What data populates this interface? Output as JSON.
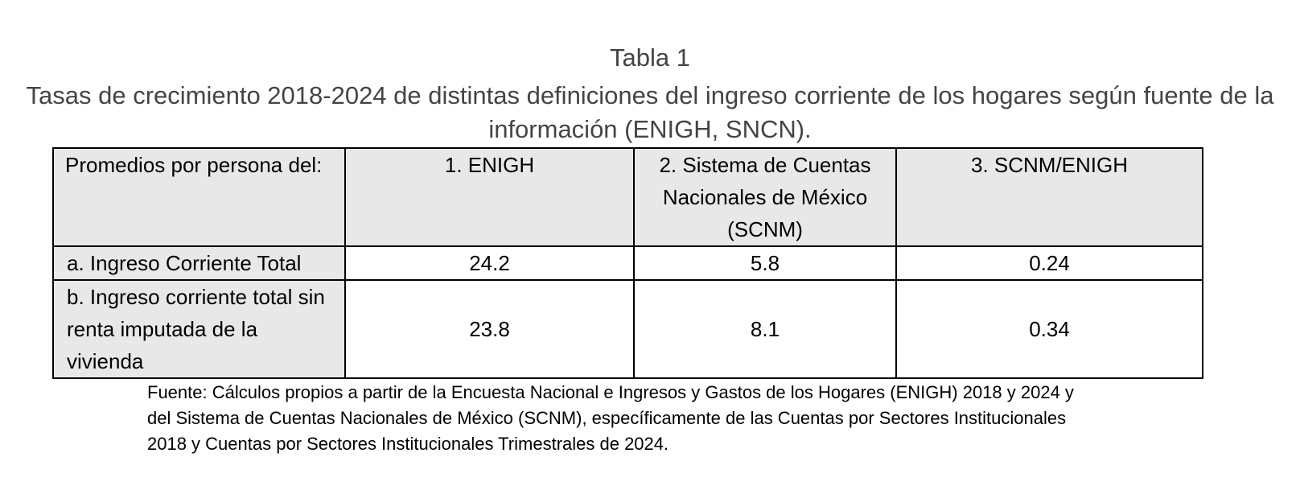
{
  "header": {
    "title": "Tabla 1",
    "subtitle": "Tasas de crecimiento 2018-2024 de distintas definiciones del ingreso corriente de los hogares según fuente de la información (ENIGH, SNCN)."
  },
  "table": {
    "columns": [
      "Promedios por persona del:",
      "1. ENIGH",
      "2. Sistema de Cuentas Nacionales de México (SCNM)",
      "3. SCNM/ENIGH"
    ],
    "rows": [
      [
        "a. Ingreso Corriente Total",
        24.2,
        5.8,
        0.24
      ],
      [
        "b. Ingreso corriente total sin renta imputada de la vivienda",
        23.8,
        8.1,
        0.34
      ]
    ]
  },
  "footnote": "Fuente: Cálculos propios a partir de la Encuesta Nacional e Ingresos y Gastos de los Hogares (ENIGH) 2018 y 2024 y del Sistema de Cuentas Nacionales de México (SCNM), específicamente de las Cuentas por Sectores Institucionales 2018 y Cuentas por Sectores Institucionales Trimestrales de 2024."
}
